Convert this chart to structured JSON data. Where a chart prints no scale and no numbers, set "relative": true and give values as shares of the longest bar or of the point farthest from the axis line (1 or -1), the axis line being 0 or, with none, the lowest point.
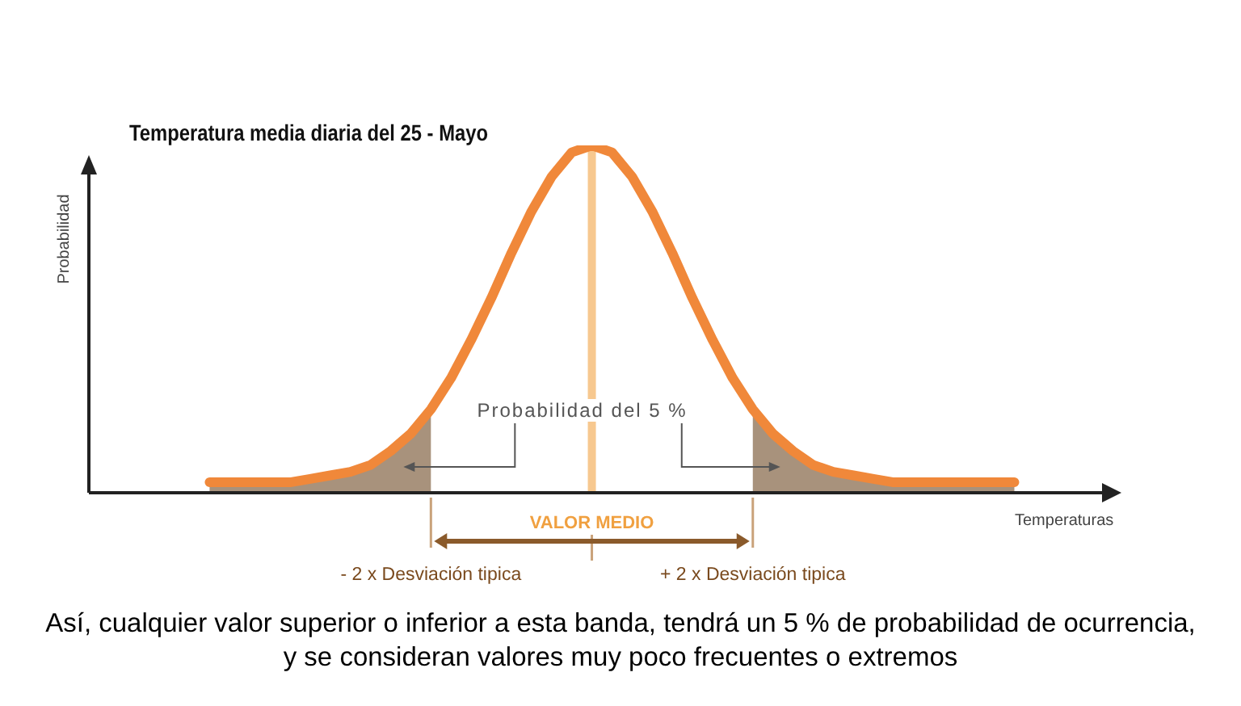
{
  "chart_data": {
    "type": "line",
    "relative": true,
    "title": "Temperatura media diaria del 25 - Mayo",
    "xlabel": "Temperaturas",
    "categories": [
      null,
      null,
      null,
      null,
      null,
      null,
      null,
      null,
      null,
      null,
      null,
      "- 2 x Desviación tipica",
      null,
      null,
      null,
      null,
      null,
      null,
      null,
      "VALOR MEDIO",
      null,
      null,
      null,
      null,
      null,
      null,
      null,
      "+ 2 x Desviación tipica",
      null,
      null,
      null,
      null,
      null,
      null,
      null,
      null,
      null,
      null,
      null,
      null,
      null
    ],
    "series": [
      {
        "type": "area",
        "color": "#a8927c",
        "values": [
          0.03,
          0.03,
          0.03,
          0.03,
          0.03,
          0.04,
          0.05,
          0.06,
          0.08,
          0.12,
          0.17,
          0.24,
          null,
          null,
          null,
          null,
          null,
          null,
          null,
          null,
          null,
          null,
          null,
          null,
          null,
          null,
          null,
          null,
          null,
          null,
          null,
          null,
          null,
          null,
          null,
          null,
          null,
          null,
          null,
          null,
          null
        ]
      },
      {
        "type": "area",
        "color": "#a8927c",
        "values": [
          null,
          null,
          null,
          null,
          null,
          null,
          null,
          null,
          null,
          null,
          null,
          null,
          null,
          null,
          null,
          null,
          null,
          null,
          null,
          null,
          null,
          null,
          null,
          null,
          null,
          null,
          null,
          0.24,
          0.17,
          0.12,
          0.08,
          0.06,
          0.05,
          0.04,
          0.03,
          0.03,
          0.03,
          0.03,
          0.03,
          0.03,
          0.03
        ]
      },
      {
        "color": "#f0883a",
        "values": [
          0.03,
          0.03,
          0.03,
          0.03,
          0.03,
          0.04,
          0.05,
          0.06,
          0.08,
          0.12,
          0.17,
          0.24,
          0.33,
          0.44,
          0.56,
          0.69,
          0.81,
          0.91,
          0.98,
          1,
          0.98,
          0.91,
          0.81,
          0.69,
          0.56,
          0.44,
          0.33,
          0.24,
          0.17,
          0.12,
          0.08,
          0.06,
          0.05,
          0.04,
          0.03,
          0.03,
          0.03,
          0.03,
          0.03,
          0.03,
          0.03
        ]
      }
    ],
    "ref_lines": [
      {
        "axis": "x",
        "value": "VALOR MEDIO",
        "color": "#f7c88f"
      }
    ],
    "annotations": [
      "Probabilidad del 5 %",
      "Así, cualquier valor superior o inferior a esta banda, tendrá un 5 % de probabilidad de ocurrencia, y se consideran valores muy poco frecuentes o extremos",
      "Probabilidad"
    ]
  }
}
